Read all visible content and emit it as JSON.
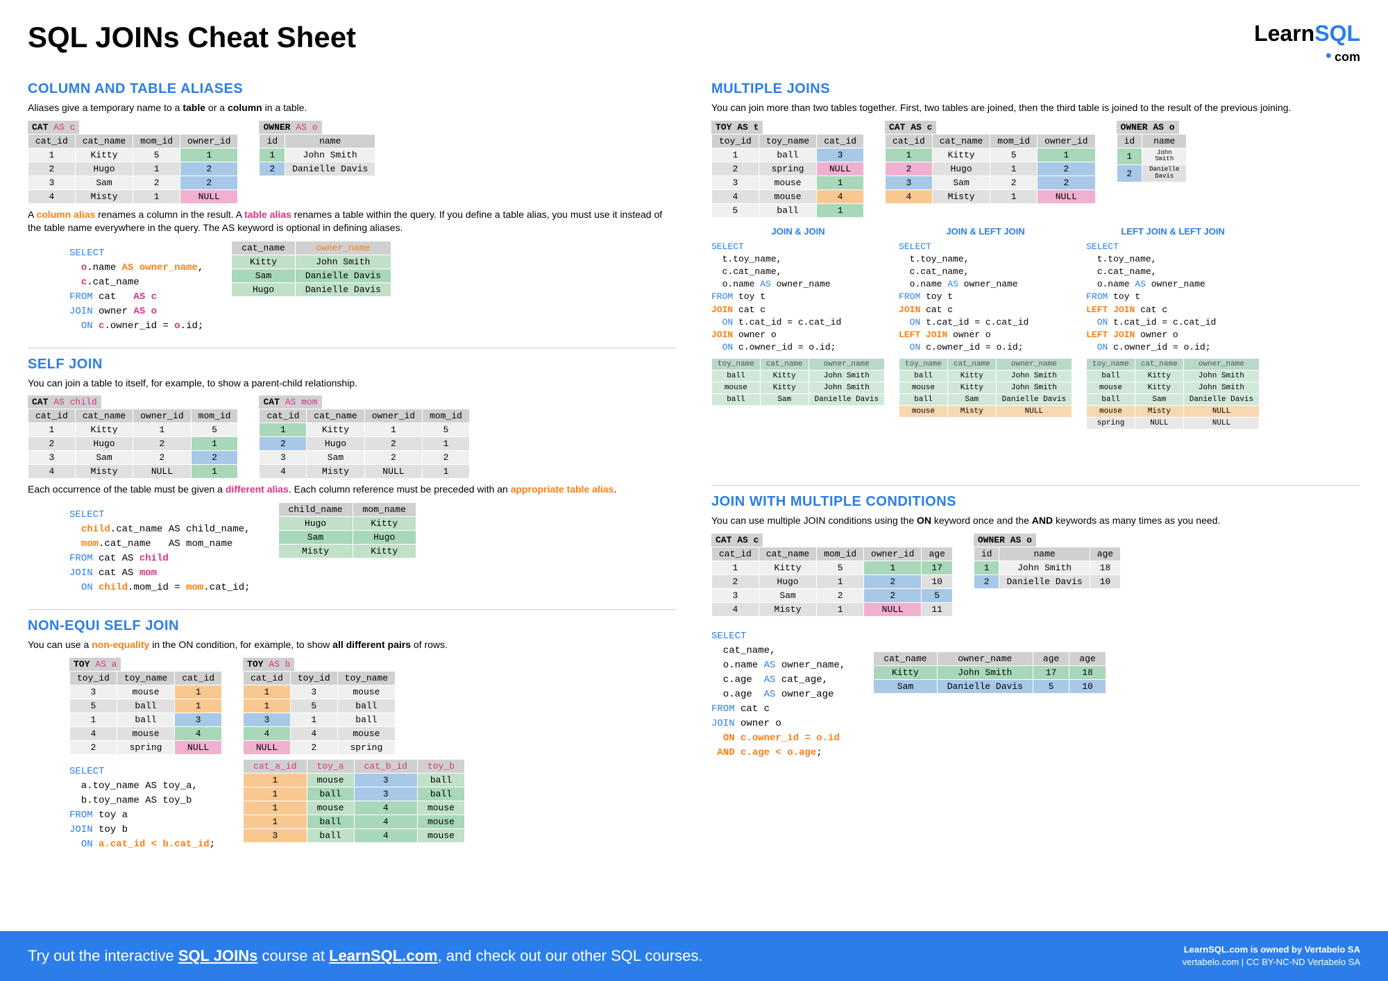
{
  "page_title": "SQL JOINs Cheat Sheet",
  "logo": {
    "learn": "Learn",
    "sql": "SQL",
    "com": "com"
  },
  "colors": {
    "blue": "#2b7de9",
    "pink": "#d63384",
    "orange": "#fd7e14",
    "green_cell": "#a8d8b9",
    "blue_cell": "#a8c8e8",
    "orange_cell": "#f8c890",
    "pink_cell": "#f0b0d0",
    "header_gray": "#d0d0d0",
    "row_light": "#f0f0f0",
    "row_dark": "#e0e0e0"
  },
  "sections": {
    "aliases": {
      "title": "COLUMN AND TABLE ALIASES",
      "intro": "Aliases give a temporary name to a <b>table</b> or a <b>column</b> in a table.",
      "cat_table": {
        "title_html": "<b>CAT</b> <span class='as'>AS c</span>",
        "columns": [
          "cat_id",
          "cat_name",
          "mom_id",
          "owner_id"
        ],
        "rows": [
          [
            "1",
            "Kitty",
            "5",
            "1"
          ],
          [
            "2",
            "Hugo",
            "1",
            "2"
          ],
          [
            "3",
            "Sam",
            "2",
            "2"
          ],
          [
            "4",
            "Misty",
            "1",
            "NULL"
          ]
        ],
        "cell_colors": {
          "0,3": "green",
          "1,3": "blue",
          "2,3": "blue",
          "3,3": "pink"
        }
      },
      "owner_table": {
        "title_html": "<b>OWNER</b> <span class='as'>AS o</span>",
        "columns": [
          "id",
          "name"
        ],
        "rows": [
          [
            "1",
            "John Smith"
          ],
          [
            "2",
            "Danielle Davis"
          ]
        ],
        "cell_colors": {
          "0,0": "green",
          "1,0": "blue"
        }
      },
      "para2_html": "A <span class='orange'>column alias</span> renames a column in the result. A <span class='pink'>table alias</span> renames a table within the query. If you define a table alias, you must use it instead of the table name everywhere in the query. The AS keyword is optional in defining aliases.",
      "code_html": "<span class='blue-kw'>SELECT</span>\n  <span class='pink'>o</span>.name <span class='orange'>AS owner_name</span>,\n  <span class='pink'>c</span>.cat_name\n<span class='blue-kw'>FROM</span> cat   <span class='pink'>AS c</span>\n<span class='blue-kw'>JOIN</span> owner <span class='pink'>AS o</span>\n  <span class='blue-kw'>ON</span> <span class='pink'>c</span>.owner_id = <span class='pink'>o</span>.id;",
      "result": {
        "columns": [
          "cat_name",
          "owner_name"
        ],
        "header_colors": {
          "1": "orange"
        },
        "rows": [
          [
            "Kitty",
            "John Smith"
          ],
          [
            "Sam",
            "Danielle Davis"
          ],
          [
            "Hugo",
            "Danielle Davis"
          ]
        ]
      }
    },
    "selfjoin": {
      "title": "SELF JOIN",
      "intro": "You can join a table to itself, for example, to show a parent-child relationship.",
      "child_table": {
        "title_html": "<b>CAT</b> <span class='as'>AS child</span>",
        "columns": [
          "cat_id",
          "cat_name",
          "owner_id",
          "mom_id"
        ],
        "rows": [
          [
            "1",
            "Kitty",
            "1",
            "5"
          ],
          [
            "2",
            "Hugo",
            "2",
            "1"
          ],
          [
            "3",
            "Sam",
            "2",
            "2"
          ],
          [
            "4",
            "Misty",
            "NULL",
            "1"
          ]
        ],
        "cell_colors": {
          "1,3": "green",
          "2,3": "blue",
          "3,3": "green"
        }
      },
      "mom_table": {
        "title_html": "<b>CAT</b> <span class='as'>AS mom</span>",
        "columns": [
          "cat_id",
          "cat_name",
          "owner_id",
          "mom_id"
        ],
        "rows": [
          [
            "1",
            "Kitty",
            "1",
            "5"
          ],
          [
            "2",
            "Hugo",
            "2",
            "1"
          ],
          [
            "3",
            "Sam",
            "2",
            "2"
          ],
          [
            "4",
            "Misty",
            "NULL",
            "1"
          ]
        ],
        "cell_colors": {
          "0,0": "green",
          "1,0": "blue"
        }
      },
      "para2_html": "Each occurrence of the table must be given a <span class='pink'>different alias</span>. Each column reference must be preceded with an <span class='orange'>appropriate table alias</span>.",
      "code_html": "<span class='blue-kw'>SELECT</span>\n  <span class='orange'>child</span>.cat_name AS child_name,\n  <span class='orange'>mom</span>.cat_name   AS mom_name\n<span class='blue-kw'>FROM</span> cat AS <span class='pink'>child</span>\n<span class='blue-kw'>JOIN</span> cat AS <span class='pink'>mom</span>\n  <span class='blue-kw'>ON</span> <span class='orange'>child</span>.mom_id = <span class='orange'>mom</span>.cat_id;",
      "result": {
        "columns": [
          "child_name",
          "mom_name"
        ],
        "rows": [
          [
            "Hugo",
            "Kitty"
          ],
          [
            "Sam",
            "Hugo"
          ],
          [
            "Misty",
            "Kitty"
          ]
        ]
      }
    },
    "nonequi": {
      "title": "NON-EQUI SELF JOIN",
      "intro_html": "You can use a <span class='orange'>non-equality</span> in the ON condition, for example, to show <b>all different pairs</b> of rows.",
      "toy_a": {
        "title_html": "<b>TOY</b> <span class='as'>AS a</span>",
        "columns": [
          "toy_id",
          "toy_name",
          "cat_id"
        ],
        "rows": [
          [
            "3",
            "mouse",
            "1"
          ],
          [
            "5",
            "ball",
            "1"
          ],
          [
            "1",
            "ball",
            "3"
          ],
          [
            "4",
            "mouse",
            "4"
          ],
          [
            "2",
            "spring",
            "NULL"
          ]
        ],
        "cell_colors": {
          "0,2": "orange",
          "1,2": "orange",
          "2,2": "blue",
          "3,2": "green",
          "4,2": "pink"
        }
      },
      "toy_b": {
        "title_html": "<b>TOY</b> <span class='as'>AS b</span>",
        "columns": [
          "cat_id",
          "toy_id",
          "toy_name"
        ],
        "rows": [
          [
            "1",
            "3",
            "mouse"
          ],
          [
            "1",
            "5",
            "ball"
          ],
          [
            "3",
            "1",
            "ball"
          ],
          [
            "4",
            "4",
            "mouse"
          ],
          [
            "NULL",
            "2",
            "spring"
          ]
        ],
        "cell_colors": {
          "0,0": "orange",
          "1,0": "orange",
          "2,0": "blue",
          "3,0": "green",
          "4,0": "pink"
        }
      },
      "code_html": "<span class='blue-kw'>SELECT</span>\n  a.toy_name AS toy_a,\n  b.toy_name AS toy_b\n<span class='blue-kw'>FROM</span> toy a\n<span class='blue-kw'>JOIN</span> toy b\n  <span class='blue-kw'>ON</span> <span class='orange'>a.cat_id &lt; b.cat_id</span>;",
      "result": {
        "columns": [
          "cat_a_id",
          "toy_a",
          "cat_b_id",
          "toy_b"
        ],
        "header_colors": {
          "0": "pink",
          "1": "pink",
          "2": "pink",
          "3": "pink"
        },
        "rows": [
          [
            "1",
            "mouse",
            "3",
            "ball"
          ],
          [
            "1",
            "ball",
            "3",
            "ball"
          ],
          [
            "1",
            "mouse",
            "4",
            "mouse"
          ],
          [
            "1",
            "ball",
            "4",
            "mouse"
          ],
          [
            "3",
            "ball",
            "4",
            "mouse"
          ]
        ],
        "col_cell_colors": {
          "0": "orange",
          "2": [
            "blue",
            "blue",
            "green",
            "green",
            "green"
          ]
        }
      }
    },
    "multiple": {
      "title": "MULTIPLE JOINS",
      "intro": "You can join more than two tables together.  First, two tables are joined, then the third table is joined to the result of the previous joining.",
      "toy": {
        "title_html": "<b>TOY</b> <b>AS t</b>",
        "columns": [
          "toy_id",
          "toy_name",
          "cat_id"
        ],
        "rows": [
          [
            "1",
            "ball",
            "3"
          ],
          [
            "2",
            "spring",
            "NULL"
          ],
          [
            "3",
            "mouse",
            "1"
          ],
          [
            "4",
            "mouse",
            "4"
          ],
          [
            "5",
            "ball",
            "1"
          ]
        ],
        "cell_colors": {
          "0,2": "blue",
          "1,2": "pink",
          "2,2": "green",
          "3,2": "orange",
          "4,2": "green"
        }
      },
      "cat": {
        "title_html": "<b>CAT AS c</b>",
        "columns": [
          "cat_id",
          "cat_name",
          "mom_id",
          "owner_id"
        ],
        "rows": [
          [
            "1",
            "Kitty",
            "5",
            "1"
          ],
          [
            "2",
            "Hugo",
            "1",
            "2"
          ],
          [
            "3",
            "Sam",
            "2",
            "2"
          ],
          [
            "4",
            "Misty",
            "1",
            "NULL"
          ]
        ],
        "cell_colors": {
          "0,0": "green",
          "1,0": "pink",
          "2,0": "blue",
          "3,0": "orange",
          "0,3": "green",
          "1,3": "blue",
          "2,3": "blue",
          "3,3": "pink"
        }
      },
      "owner": {
        "title_html": "<b>OWNER</b> <b>AS o</b>",
        "columns": [
          "id",
          "name"
        ],
        "rows": [
          [
            "1",
            "John Smith"
          ],
          [
            "2",
            "Danielle Davis"
          ]
        ],
        "cell_colors": {
          "0,0": "green",
          "1,0": "blue"
        },
        "small_name": true
      },
      "joins": [
        {
          "title": "JOIN & JOIN",
          "code_html": "<span class='blue-kw'>SELECT</span>\n  t.toy_name,\n  c.cat_name,\n  o.name <span class='blue-kw'>AS</span> owner_name\n<span class='blue-kw'>FROM</span> toy t\n<span class='orange'>JOIN</span> cat c\n  <span class='blue-kw'>ON</span> t.cat_id = c.cat_id\n<span class='orange'>JOIN</span> owner o\n  <span class='blue-kw'>ON</span> c.owner_id = o.id;",
          "result": {
            "columns": [
              "toy_name",
              "cat_name",
              "owner_name"
            ],
            "rows": [
              [
                "ball",
                "Kitty",
                "John Smith"
              ],
              [
                "mouse",
                "Kitty",
                "John Smith"
              ],
              [
                "ball",
                "Sam",
                "Danielle Davis"
              ]
            ]
          }
        },
        {
          "title": "JOIN & LEFT JOIN",
          "code_html": "<span class='blue-kw'>SELECT</span>\n  t.toy_name,\n  c.cat_name,\n  o.name <span class='blue-kw'>AS</span> owner_name\n<span class='blue-kw'>FROM</span> toy t\n<span class='orange'>JOIN</span> cat c\n  <span class='blue-kw'>ON</span> t.cat_id = c.cat_id\n<span class='orange'>LEFT JOIN</span> owner o\n  <span class='blue-kw'>ON</span> c.owner_id = o.id;",
          "result": {
            "columns": [
              "toy_name",
              "cat_name",
              "owner_name"
            ],
            "rows": [
              [
                "ball",
                "Kitty",
                "John Smith"
              ],
              [
                "mouse",
                "Kitty",
                "John Smith"
              ],
              [
                "ball",
                "Sam",
                "Danielle Davis"
              ],
              [
                "mouse",
                "Misty",
                "NULL"
              ]
            ],
            "row_colors": {
              "3": "orange"
            }
          }
        },
        {
          "title": "LEFT JOIN & LEFT JOIN",
          "code_html": "<span class='blue-kw'>SELECT</span>\n  t.toy_name,\n  c.cat_name,\n  o.name <span class='blue-kw'>AS</span> owner_name\n<span class='blue-kw'>FROM</span> toy t\n<span class='orange'>LEFT JOIN</span> cat c\n  <span class='blue-kw'>ON</span> t.cat_id = c.cat_id\n<span class='orange'>LEFT JOIN</span> owner o\n  <span class='blue-kw'>ON</span> c.owner_id = o.id;",
          "result": {
            "columns": [
              "toy_name",
              "cat_name",
              "owner_name"
            ],
            "rows": [
              [
                "ball",
                "Kitty",
                "John Smith"
              ],
              [
                "mouse",
                "Kitty",
                "John Smith"
              ],
              [
                "ball",
                "Sam",
                "Danielle Davis"
              ],
              [
                "mouse",
                "Misty",
                "NULL"
              ],
              [
                "spring",
                "NULL",
                "NULL"
              ]
            ],
            "row_colors": {
              "3": "orange",
              "4": "gray"
            }
          }
        }
      ]
    },
    "multicond": {
      "title": "JOIN WITH MULTIPLE CONDITIONS",
      "intro_html": "You can use multiple JOIN conditions using the <b>ON</b> keyword once and the <b>AND</b> keywords as many times as you need.",
      "cat": {
        "title_html": "<b>CAT AS c</b>",
        "columns": [
          "cat_id",
          "cat_name",
          "mom_id",
          "owner_id",
          "age"
        ],
        "rows": [
          [
            "1",
            "Kitty",
            "5",
            "1",
            "17"
          ],
          [
            "2",
            "Hugo",
            "1",
            "2",
            "10"
          ],
          [
            "3",
            "Sam",
            "2",
            "2",
            "5"
          ],
          [
            "4",
            "Misty",
            "1",
            "NULL",
            "11"
          ]
        ],
        "cell_colors": {
          "0,3": "green",
          "1,3": "blue",
          "2,3": "blue",
          "3,3": "pink",
          "0,4": "green",
          "2,4": "blue"
        }
      },
      "owner": {
        "title_html": "<b>OWNER</b> <b>AS o</b>",
        "columns": [
          "id",
          "name",
          "age"
        ],
        "rows": [
          [
            "1",
            "John Smith",
            "18"
          ],
          [
            "2",
            "Danielle Davis",
            "10"
          ]
        ],
        "cell_colors": {
          "0,0": "green",
          "1,0": "blue"
        }
      },
      "code_html": "<span class='blue-kw'>SELECT</span>\n  cat_name,\n  o.name <span class='blue-kw'>AS</span> owner_name,\n  c.age  <span class='blue-kw'>AS</span> cat_age,\n  o.age  <span class='blue-kw'>AS</span> owner_age\n<span class='blue-kw'>FROM</span> cat c\n<span class='blue-kw'>JOIN</span> owner o\n  <span class='orange'>ON c.owner_id = o.id</span>\n <span class='orange'>AND c.age &lt; o.age</span>;",
      "result": {
        "columns": [
          "cat_name",
          "owner_name",
          "age",
          "age"
        ],
        "rows": [
          [
            "Kitty",
            "John Smith",
            "17",
            "18"
          ],
          [
            "Sam",
            "Danielle Davis",
            "5",
            "10"
          ]
        ],
        "row_colors": {
          "0": "green",
          "1": "blue"
        }
      }
    }
  },
  "footer": {
    "left_html": "Try out the interactive <span class='under'>SQL JOINs</span> course at <span class='under'>LearnSQL.com</span>, and check out our other SQL courses.",
    "right1": "LearnSQL.com is owned by Vertabelo SA",
    "right2": "vertabelo.com | CC BY-NC-ND Vertabelo SA"
  }
}
